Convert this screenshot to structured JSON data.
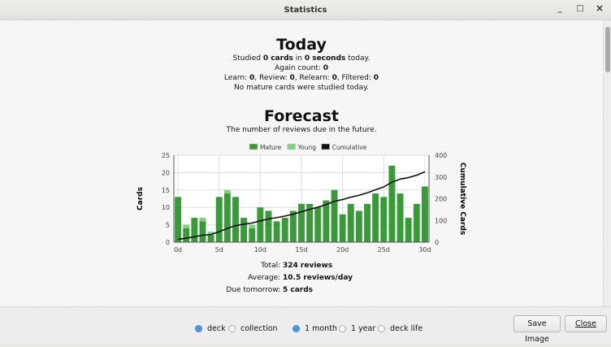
{
  "window": {
    "title": "Statistics",
    "minimize": "_",
    "maximize": "□",
    "close": "×"
  },
  "today": {
    "title": "Today",
    "studied_pre": "Studied ",
    "studied_cards": "0 cards",
    "studied_mid": " in ",
    "studied_secs": "0 seconds",
    "studied_post": " today.",
    "again_label": "Again count: ",
    "again_value": "0",
    "learn_label": "Learn: ",
    "learn": "0",
    "review_label": ", Review: ",
    "review": "0",
    "relearn_label": ", Relearn: ",
    "relearn": "0",
    "filtered_label": ", Filtered: ",
    "filtered": "0",
    "mature_note": "No mature cards were studied today."
  },
  "forecast": {
    "title": "Forecast",
    "subtitle": "The number of reviews due in the future.",
    "total_label": "Total: ",
    "total": "324 reviews",
    "average_label": "Average: ",
    "average": "10.5 reviews/day",
    "tomorrow_label": "Due tomorrow: ",
    "tomorrow": "5 cards"
  },
  "chart_data": {
    "type": "bar",
    "x": [
      0,
      1,
      2,
      3,
      4,
      5,
      6,
      7,
      8,
      9,
      10,
      11,
      12,
      13,
      14,
      15,
      16,
      17,
      18,
      19,
      20,
      21,
      22,
      23,
      24,
      25,
      26,
      27,
      28,
      29,
      30
    ],
    "series": [
      {
        "name": "Mature",
        "color": "#3a9a3a",
        "values": [
          13,
          4,
          7,
          6,
          2,
          13,
          14,
          13,
          7,
          4,
          10,
          9,
          6,
          7,
          9,
          11,
          11,
          10,
          12,
          15,
          8,
          11,
          9,
          11,
          14,
          13,
          22,
          14,
          7,
          11,
          16
        ]
      },
      {
        "name": "Young",
        "color": "#7fcf7f",
        "values": [
          0,
          1,
          0,
          1,
          1,
          0,
          1,
          0,
          0,
          1,
          0,
          0,
          0,
          0,
          0,
          0,
          0,
          0,
          0,
          0,
          0,
          0,
          0,
          0,
          0,
          0,
          0,
          0,
          0,
          0,
          0
        ]
      },
      {
        "name": "Cumulative",
        "color": "#000000",
        "axis": "right",
        "values": [
          13,
          18,
          25,
          32,
          35,
          48,
          63,
          76,
          83,
          88,
          98,
          107,
          113,
          120,
          129,
          140,
          151,
          161,
          173,
          188,
          196,
          207,
          216,
          227,
          241,
          254,
          276,
          290,
          297,
          308,
          324
        ]
      }
    ],
    "xticks": [
      "0d",
      "5d",
      "10d",
      "15d",
      "20d",
      "25d",
      "30d"
    ],
    "xtick_values": [
      0,
      5,
      10,
      15,
      20,
      25,
      30
    ],
    "yticks": [
      "0",
      "5",
      "10",
      "15",
      "20",
      "25"
    ],
    "y2ticks": [
      "0",
      "100",
      "200",
      "300",
      "400"
    ],
    "ylim": [
      0,
      25
    ],
    "y2lim": [
      0,
      400
    ],
    "ylabel": "Cards",
    "y2label": "Cumulative Cards",
    "legend": "top",
    "grid": true
  },
  "controls": {
    "scope": [
      {
        "label": "deck",
        "selected": true
      },
      {
        "label": "collection",
        "selected": false
      }
    ],
    "period": [
      {
        "label": "1 month",
        "selected": true
      },
      {
        "label": "1 year",
        "selected": false
      },
      {
        "label": "deck life",
        "selected": false
      }
    ],
    "save": "Save Image",
    "close": "Close"
  }
}
